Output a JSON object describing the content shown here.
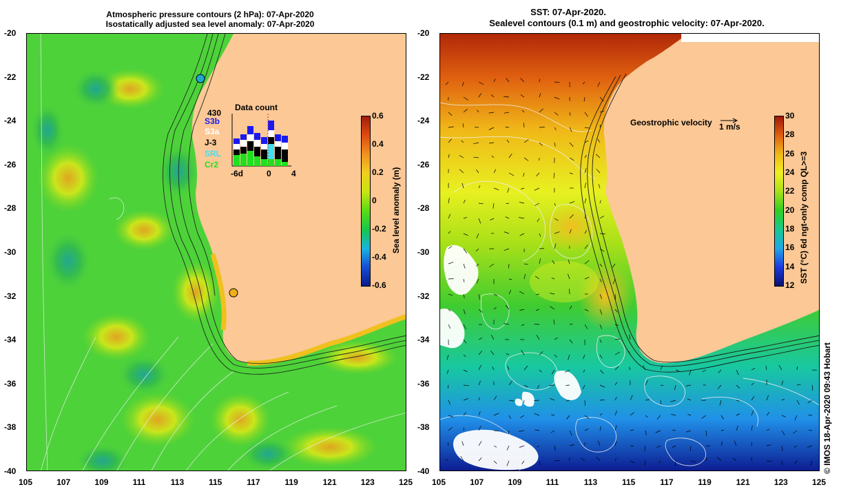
{
  "left_panel": {
    "title_line1": "Atmospheric pressure contours (2 hPa): 07-Apr-2020",
    "title_line2": "Isostatically adjusted sea level anomaly: 07-Apr-2020",
    "colorbar": {
      "label": "Sea level anomaly (m)",
      "ticks": [
        "0.6",
        "0.4",
        "0.2",
        "0",
        "-0.2",
        "-0.4",
        "-0.6"
      ],
      "colors": [
        "#0a1a8c",
        "#1450d8",
        "#18b4e0",
        "#16c84a",
        "#5adc14",
        "#c8e614",
        "#f0d020",
        "#f09020",
        "#e04a10",
        "#a01e10"
      ]
    },
    "inset": {
      "title": "Data count",
      "max_count": "430",
      "satellites": [
        {
          "name": "S3b",
          "color": "#1a1af0"
        },
        {
          "name": "S3a",
          "color": "#ffffff"
        },
        {
          "name": "J-3",
          "color": "#000000"
        },
        {
          "name": "SRL",
          "color": "#40e0f0"
        },
        {
          "name": "Cr2",
          "color": "#20e020"
        }
      ],
      "x_ticks": [
        "-6d",
        "0",
        "4"
      ]
    }
  },
  "right_panel": {
    "title_line1": "SST: 07-Apr-2020.",
    "title_line2": "Sealevel contours (0.1 m) and geostrophic velocity: 07-Apr-2020.",
    "velocity_label": "Geostrophic velocity",
    "velocity_scale": "1 m/s",
    "colorbar": {
      "label": "SST (°C) 6d ngt-only comp QL>=3",
      "ticks": [
        "30",
        "28",
        "26",
        "24",
        "22",
        "20",
        "18",
        "16",
        "14",
        "12"
      ],
      "colors": [
        "#0a1070",
        "#1a3ae0",
        "#20a8e8",
        "#18c890",
        "#30d020",
        "#a8e018",
        "#f0f020",
        "#f0b818",
        "#e06010",
        "#a01808"
      ]
    }
  },
  "axes": {
    "lat_ticks": [
      "-20",
      "-22",
      "-24",
      "-26",
      "-28",
      "-30",
      "-32",
      "-34",
      "-36",
      "-38",
      "-40"
    ],
    "lon_ticks": [
      "105",
      "107",
      "109",
      "111",
      "113",
      "115",
      "117",
      "119",
      "121",
      "123",
      "125"
    ]
  },
  "credit": "© IMOS 18-Apr-2020 09:43 Hobart",
  "colors": {
    "land": "#fbc896",
    "sea_green": "#4ed23a",
    "coast_orange": "#f0c01e"
  }
}
